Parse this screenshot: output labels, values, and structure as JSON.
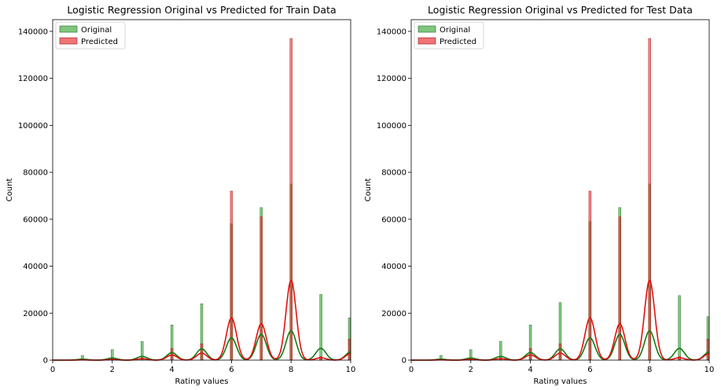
{
  "chart_data": [
    {
      "type": "bar",
      "title": "Logistic Regression Original vs Predicted for Train Data",
      "xlabel": "Rating values",
      "ylabel": "Count",
      "xlim": [
        0,
        10
      ],
      "ylim": [
        0,
        145000
      ],
      "xticks": [
        0,
        2,
        4,
        6,
        8,
        10
      ],
      "yticks": [
        0,
        20000,
        40000,
        60000,
        80000,
        100000,
        120000,
        140000
      ],
      "legend_placement": "top-left",
      "series": [
        {
          "name": "Original",
          "color": "#2ca02c",
          "x": [
            1,
            2,
            3,
            4,
            5,
            6,
            7,
            8,
            9,
            10
          ],
          "values": [
            2000,
            4500,
            8000,
            15000,
            24000,
            58000,
            65000,
            75000,
            28000,
            18000
          ],
          "kde": [
            400,
            900,
            1600,
            3200,
            4800,
            9500,
            11000,
            12500,
            5000,
            3500
          ]
        },
        {
          "name": "Predicted",
          "color": "#e41a1c",
          "x": [
            1,
            2,
            3,
            4,
            5,
            6,
            7,
            8,
            9,
            10
          ],
          "values": [
            200,
            600,
            1000,
            5000,
            7000,
            72000,
            61000,
            137000,
            1500,
            9000
          ],
          "kde": [
            100,
            300,
            600,
            2200,
            3000,
            18000,
            15500,
            34000,
            1000,
            2800
          ]
        }
      ]
    },
    {
      "type": "bar",
      "title": "Logistic Regression Original vs Predicted for Test Data",
      "xlabel": "Rating values",
      "ylabel": "Count",
      "xlim": [
        0,
        10
      ],
      "ylim": [
        0,
        145000
      ],
      "xticks": [
        0,
        2,
        4,
        6,
        8,
        10
      ],
      "yticks": [
        0,
        20000,
        40000,
        60000,
        80000,
        100000,
        120000,
        140000
      ],
      "legend_placement": "top-left",
      "series": [
        {
          "name": "Original",
          "color": "#2ca02c",
          "x": [
            1,
            2,
            3,
            4,
            5,
            6,
            7,
            8,
            9,
            10
          ],
          "values": [
            2000,
            4500,
            8000,
            15000,
            24500,
            59000,
            65000,
            75000,
            27500,
            18500
          ],
          "kde": [
            400,
            900,
            1600,
            3200,
            4800,
            9500,
            11000,
            12500,
            5000,
            3500
          ]
        },
        {
          "name": "Predicted",
          "color": "#e41a1c",
          "x": [
            1,
            2,
            3,
            4,
            5,
            6,
            7,
            8,
            9,
            10
          ],
          "values": [
            200,
            600,
            1000,
            5000,
            7000,
            72000,
            61000,
            137000,
            1500,
            9000
          ],
          "kde": [
            100,
            300,
            600,
            2200,
            3000,
            18000,
            15500,
            34000,
            1000,
            2800
          ]
        }
      ]
    }
  ]
}
